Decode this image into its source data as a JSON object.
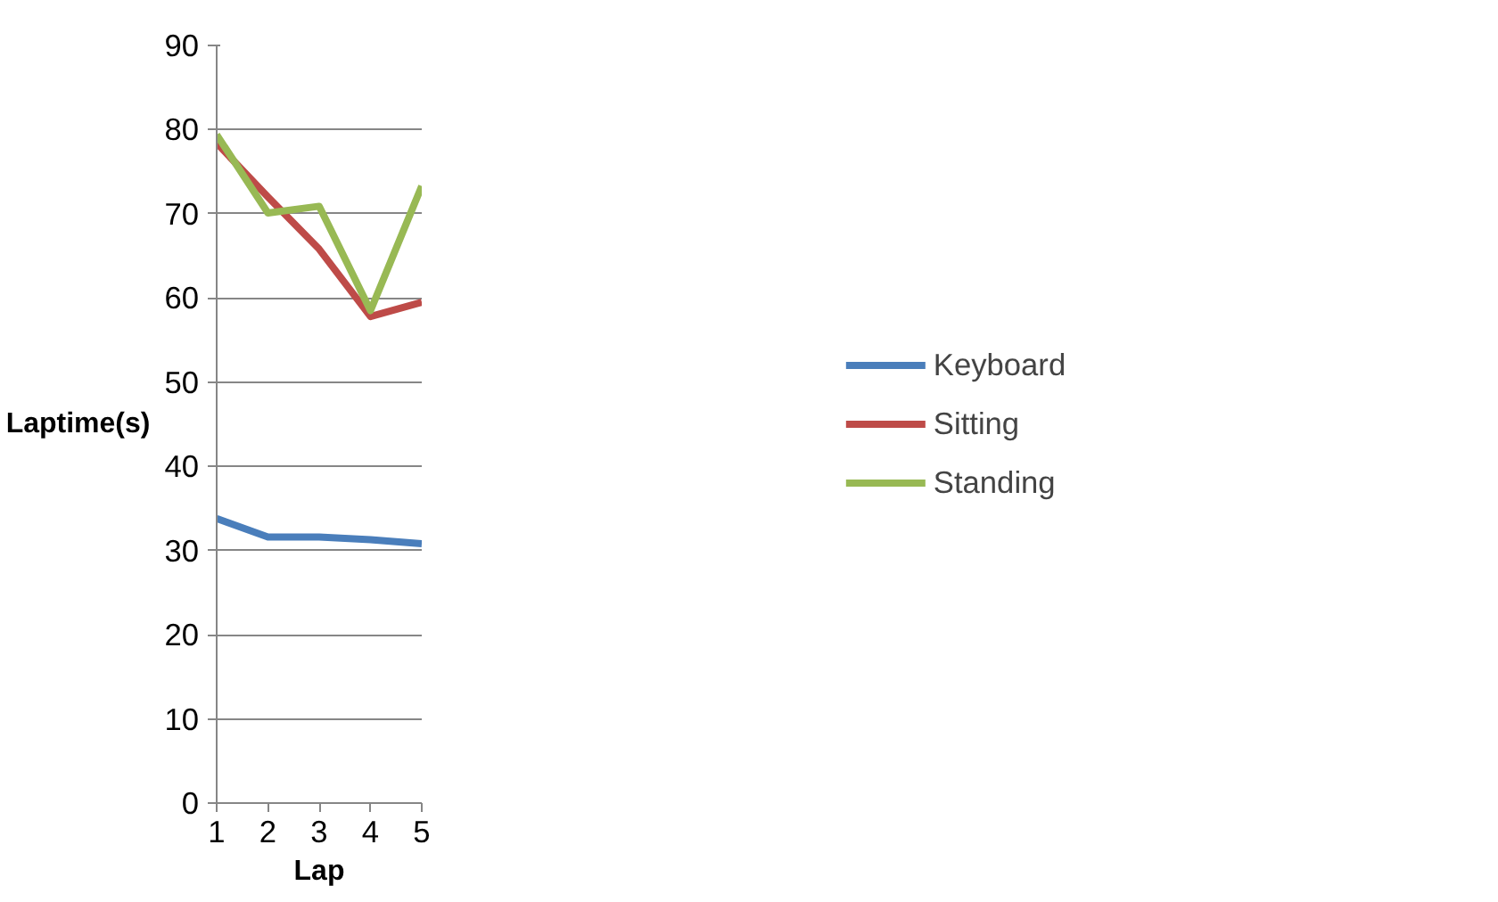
{
  "chart_data": {
    "type": "line",
    "xlabel": "Lap",
    "ylabel": "Laptime(s)",
    "x": [
      1,
      2,
      3,
      4,
      5
    ],
    "series": [
      {
        "name": "Keyboard",
        "color": "#4a7ebb",
        "values": [
          33.8,
          31.6,
          31.6,
          31.3,
          30.8
        ]
      },
      {
        "name": "Sitting",
        "color": "#be4b48",
        "values": [
          78.4,
          72,
          65.8,
          57.8,
          59.5
        ]
      },
      {
        "name": "Standing",
        "color": "#98b954",
        "values": [
          79.4,
          70.1,
          70.9,
          58.5,
          73.3
        ]
      }
    ],
    "xlim": [
      1,
      5
    ],
    "xticks": [
      1,
      2,
      3,
      4,
      5
    ],
    "ylim": [
      0,
      90
    ],
    "yticks": [
      0,
      10,
      20,
      30,
      40,
      50,
      60,
      70,
      80,
      90
    ],
    "grid": "y",
    "legend": "right",
    "marker": "none",
    "line_style": "solid"
  }
}
